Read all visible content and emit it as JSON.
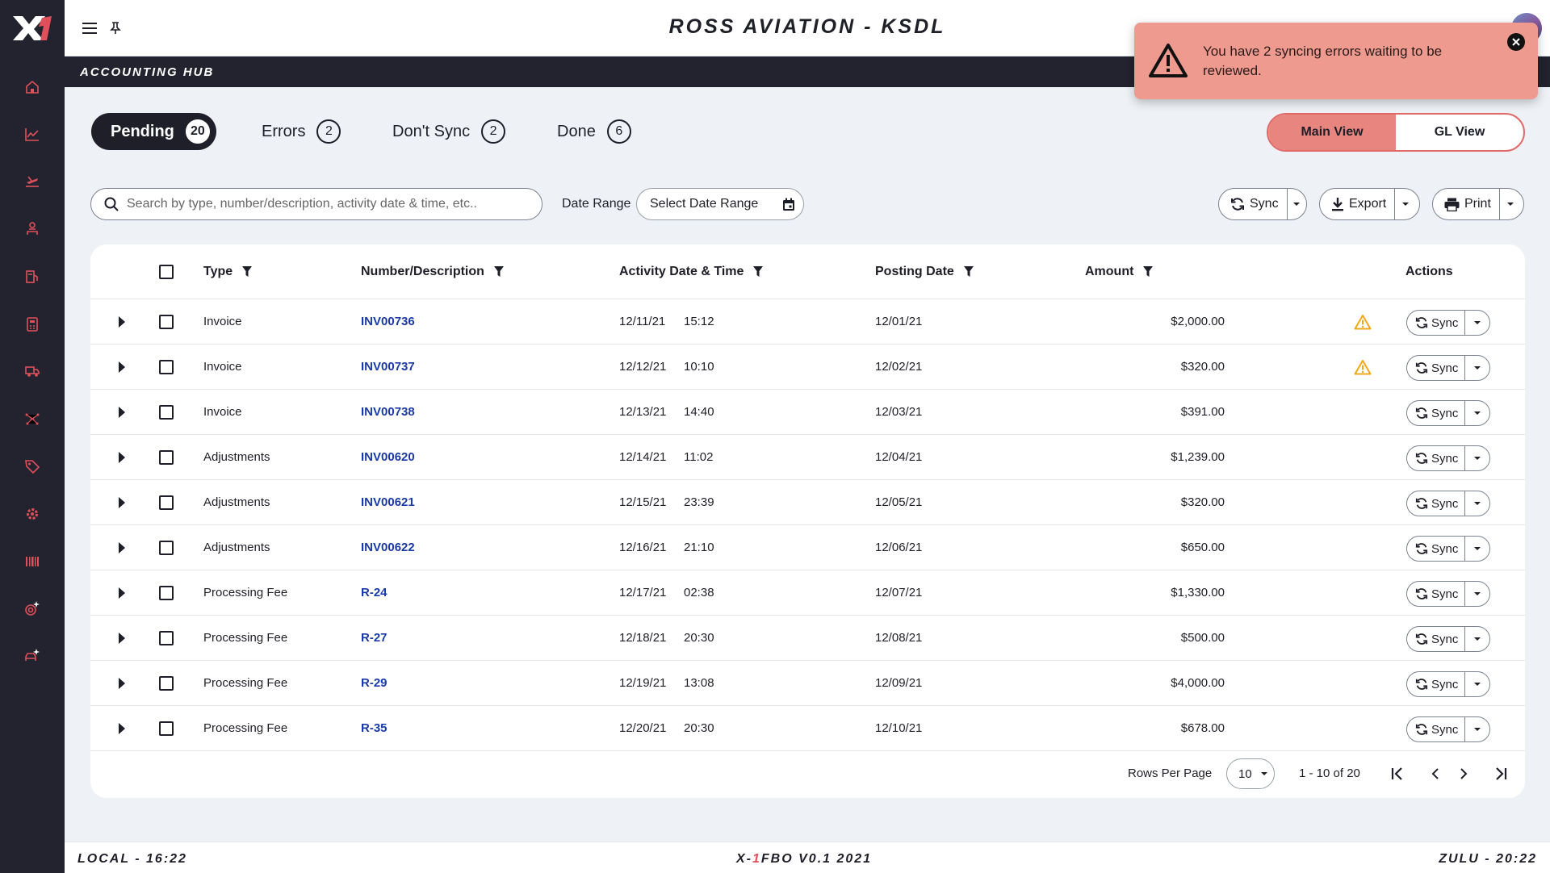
{
  "app": {
    "title": "ROSS AVIATION - KSDL",
    "section": "ACCOUNTING HUB"
  },
  "sidebar": {
    "items": [
      {
        "icon": "home-icon"
      },
      {
        "icon": "chart-icon"
      },
      {
        "icon": "departure-icon"
      },
      {
        "icon": "person-icon"
      },
      {
        "icon": "fuel-icon"
      },
      {
        "icon": "calculator-icon"
      },
      {
        "icon": "truck-icon"
      },
      {
        "icon": "network-icon"
      },
      {
        "icon": "tag-icon"
      },
      {
        "icon": "gear-icon"
      },
      {
        "icon": "barcode-icon"
      },
      {
        "icon": "target-sparkle-icon"
      },
      {
        "icon": "car-sparkle-icon"
      }
    ]
  },
  "tabs": [
    {
      "label": "Pending",
      "count": "20",
      "active": true
    },
    {
      "label": "Errors",
      "count": "2"
    },
    {
      "label": "Don't Sync",
      "count": "2"
    },
    {
      "label": "Done",
      "count": "6"
    }
  ],
  "view_toggle": {
    "main": "Main View",
    "gl": "GL View"
  },
  "search": {
    "placeholder": "Search by type, number/description, activity date & time, etc.."
  },
  "date_range": {
    "label": "Date Range",
    "placeholder": "Select Date Range"
  },
  "toolbar": {
    "sync": "Sync",
    "export": "Export",
    "print": "Print"
  },
  "table": {
    "columns": [
      "Type",
      "Number/Description",
      "Activity Date & Time",
      "Posting Date",
      "Amount",
      "Actions"
    ],
    "action_label": "Sync",
    "rows": [
      {
        "type": "Invoice",
        "number": "INV00736",
        "date": "12/11/21",
        "time": "15:12",
        "posting": "12/01/21",
        "amount": "$2,000.00",
        "warning": true
      },
      {
        "type": "Invoice",
        "number": "INV00737",
        "date": "12/12/21",
        "time": "10:10",
        "posting": "12/02/21",
        "amount": "$320.00",
        "warning": true
      },
      {
        "type": "Invoice",
        "number": "INV00738",
        "date": "12/13/21",
        "time": "14:40",
        "posting": "12/03/21",
        "amount": "$391.00",
        "warning": false
      },
      {
        "type": "Adjustments",
        "number": "INV00620",
        "date": "12/14/21",
        "time": "11:02",
        "posting": "12/04/21",
        "amount": "$1,239.00",
        "warning": false
      },
      {
        "type": "Adjustments",
        "number": "INV00621",
        "date": "12/15/21",
        "time": "23:39",
        "posting": "12/05/21",
        "amount": "$320.00",
        "warning": false
      },
      {
        "type": "Adjustments",
        "number": "INV00622",
        "date": "12/16/21",
        "time": "21:10",
        "posting": "12/06/21",
        "amount": "$650.00",
        "warning": false
      },
      {
        "type": "Processing Fee",
        "number": "R-24",
        "date": "12/17/21",
        "time": "02:38",
        "posting": "12/07/21",
        "amount": "$1,330.00",
        "warning": false
      },
      {
        "type": "Processing Fee",
        "number": "R-27",
        "date": "12/18/21",
        "time": "20:30",
        "posting": "12/08/21",
        "amount": "$500.00",
        "warning": false
      },
      {
        "type": "Processing Fee",
        "number": "R-29",
        "date": "12/19/21",
        "time": "13:08",
        "posting": "12/09/21",
        "amount": "$4,000.00",
        "warning": false
      },
      {
        "type": "Processing Fee",
        "number": "R-35",
        "date": "12/20/21",
        "time": "20:30",
        "posting": "12/10/21",
        "amount": "$678.00",
        "warning": false
      }
    ]
  },
  "pagination": {
    "rows_per_page_label": "Rows Per Page",
    "rows_per_page": "10",
    "range": "1 - 10 of 20"
  },
  "footer": {
    "local": "LOCAL - 16:22",
    "version_prefix": "X-",
    "version_accent": "1",
    "version_suffix": "FBO V0.1 2021",
    "zulu": "ZULU - 20:22"
  },
  "toast": {
    "message": "You have 2 syncing errors waiting to be reviewed."
  },
  "colors": {
    "sidebar": "#23232f",
    "accent": "#e8857f",
    "link": "#1a3aa8",
    "toast": "#ee9a8f",
    "warning": "#f0a818",
    "sidebar_icon": "#e0505a"
  }
}
